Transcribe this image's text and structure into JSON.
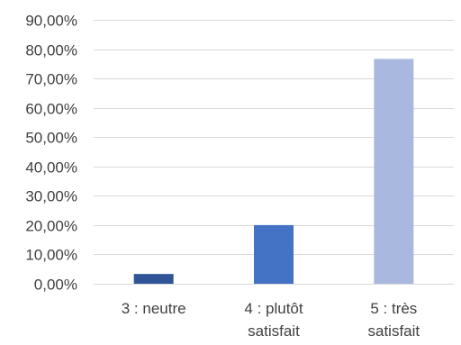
{
  "chart_data": {
    "type": "bar",
    "categories": [
      [
        "3 : neutre"
      ],
      [
        "4 : plutôt",
        "satisfait"
      ],
      [
        "5 : très",
        "satisfait"
      ]
    ],
    "values": [
      3.33,
      20.0,
      76.67
    ],
    "ylim": [
      0,
      90
    ],
    "y_ticks": [
      "0,00%",
      "10,00%",
      "20,00%",
      "30,00%",
      "40,00%",
      "50,00%",
      "60,00%",
      "70,00%",
      "80,00%",
      "90,00%"
    ],
    "y_tick_values": [
      0,
      10,
      20,
      30,
      40,
      50,
      60,
      70,
      80,
      90
    ],
    "grid": true,
    "legend": "none",
    "colors": [
      "#2f5597",
      "#4472c4",
      "#a9b8de"
    ]
  }
}
